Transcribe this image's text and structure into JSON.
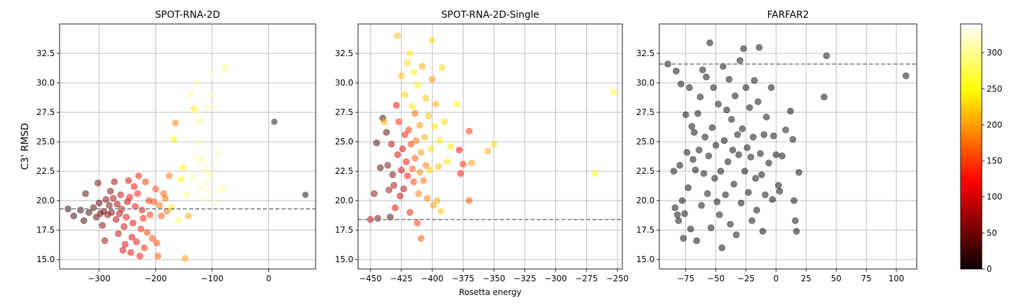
{
  "chart_data": [
    {
      "type": "scatter",
      "title": "SPOT-RNA-2D",
      "xlabel": "",
      "ylabel": "C3' RMSD",
      "xlim": [
        -370,
        83
      ],
      "ylim": [
        14.2,
        35.0
      ],
      "xticks": [
        -300,
        -200,
        -100,
        0
      ],
      "xtick_labels": [
        "−300",
        "−200",
        "−100",
        "0"
      ],
      "yticks": [
        15.0,
        17.5,
        20.0,
        22.5,
        25.0,
        27.5,
        30.0,
        32.5
      ],
      "ytick_labels": [
        "15.0",
        "17.5",
        "20.0",
        "22.5",
        "25.0",
        "27.5",
        "30.0",
        "32.5"
      ],
      "grid": true,
      "reference_line_y": 19.3,
      "points": [
        [
          -355,
          19.3
        ],
        [
          -345,
          18.7
        ],
        [
          -333,
          19.2
        ],
        [
          -327,
          18.3
        ],
        [
          -324,
          20.6
        ],
        [
          -318,
          19.0
        ],
        [
          -310,
          19.4
        ],
        [
          -305,
          18.6
        ],
        [
          -302,
          21.5
        ],
        [
          -300,
          19.8
        ],
        [
          -298,
          18.9
        ],
        [
          -294,
          17.9
        ],
        [
          -292,
          19.1
        ],
        [
          -290,
          16.6
        ],
        [
          -288,
          20.1
        ],
        [
          -285,
          18.8
        ],
        [
          -282,
          19.6
        ],
        [
          -280,
          20.8
        ],
        [
          -278,
          19.0
        ],
        [
          -275,
          20.2
        ],
        [
          -273,
          21.6
        ],
        [
          -270,
          18.4
        ],
        [
          -268,
          19.7
        ],
        [
          -266,
          17.2
        ],
        [
          -264,
          18.9
        ],
        [
          -262,
          20.5
        ],
        [
          -260,
          19.3
        ],
        [
          -258,
          15.8
        ],
        [
          -256,
          17.8
        ],
        [
          -254,
          16.3
        ],
        [
          -252,
          18.6
        ],
        [
          -250,
          19.9
        ],
        [
          -248,
          21.7
        ],
        [
          -246,
          20.3
        ],
        [
          -244,
          15.6
        ],
        [
          -242,
          16.9
        ],
        [
          -240,
          18.1
        ],
        [
          -238,
          21.2
        ],
        [
          -236,
          19.5
        ],
        [
          -234,
          16.5
        ],
        [
          -232,
          20.6
        ],
        [
          -230,
          22.1
        ],
        [
          -228,
          15.3
        ],
        [
          -226,
          17.6
        ],
        [
          -224,
          19.2
        ],
        [
          -222,
          18.5
        ],
        [
          -220,
          16.0
        ],
        [
          -218,
          21.6
        ],
        [
          -215,
          17.3
        ],
        [
          -212,
          20.0
        ],
        [
          -210,
          18.8
        ],
        [
          -206,
          16.8
        ],
        [
          -203,
          19.9
        ],
        [
          -200,
          21.0
        ],
        [
          -198,
          16.4
        ],
        [
          -196,
          15.3
        ],
        [
          -193,
          19.6
        ],
        [
          -190,
          18.7
        ],
        [
          -186,
          20.6
        ],
        [
          -183,
          20.2
        ],
        [
          -180,
          19.1
        ],
        [
          -176,
          22.1
        ],
        [
          -172,
          19.4
        ],
        [
          -168,
          25.2
        ],
        [
          -165,
          26.6
        ],
        [
          -160,
          18.3
        ],
        [
          -155,
          21.8
        ],
        [
          -152,
          22.8
        ],
        [
          -148,
          15.1
        ],
        [
          -145,
          20.5
        ],
        [
          -142,
          18.7
        ],
        [
          -138,
          29.0
        ],
        [
          -135,
          22.0
        ],
        [
          -132,
          27.8
        ],
        [
          -130,
          27.5
        ],
        [
          -128,
          23.7
        ],
        [
          -126,
          30.0
        ],
        [
          -124,
          25.0
        ],
        [
          -122,
          26.8
        ],
        [
          -120,
          21.1
        ],
        [
          -118,
          23.4
        ],
        [
          -115,
          20.2
        ],
        [
          -112,
          22.6
        ],
        [
          -110,
          21.5
        ],
        [
          -108,
          27.9
        ],
        [
          -106,
          20.8
        ],
        [
          -104,
          22.2
        ],
        [
          -102,
          29.0
        ],
        [
          -100,
          30.7
        ],
        [
          -98,
          27.9
        ],
        [
          -96,
          19.8
        ],
        [
          -94,
          22.9
        ],
        [
          -90,
          24.1
        ],
        [
          -88,
          19.6
        ],
        [
          -82,
          21.0
        ],
        [
          -78,
          31.3
        ],
        [
          10,
          26.7
        ],
        [
          65,
          20.5
        ]
      ],
      "point_colors": [
        15,
        20,
        18,
        22,
        30,
        25,
        35,
        40,
        45,
        30,
        50,
        60,
        45,
        70,
        55,
        65,
        48,
        52,
        60,
        75,
        70,
        80,
        72,
        85,
        78,
        90,
        95,
        100,
        88,
        105,
        110,
        92,
        98,
        115,
        120,
        102,
        108,
        125,
        112,
        118,
        130,
        135,
        128,
        140,
        122,
        132,
        138,
        145,
        150,
        142,
        148,
        155,
        160,
        152,
        158,
        165,
        170,
        162,
        168,
        175,
        172,
        178,
        240,
        245,
        185,
        290,
        250,
        255,
        200,
        300,
        205,
        305,
        310,
        240,
        315,
        320,
        308,
        312,
        300,
        318,
        305,
        322,
        310,
        315,
        320,
        325,
        312,
        318,
        328,
        322,
        325,
        330,
        320,
        335,
        300,
        290
      ],
      "colorbar_ticks": [
        0,
        50,
        100,
        150,
        200,
        250,
        300
      ]
    },
    {
      "type": "scatter",
      "title": "SPOT-RNA-2D-Single",
      "xlabel": "Rosetta energy",
      "ylabel": "",
      "xlim": [
        -460,
        -246
      ],
      "ylim": [
        14.2,
        35.0
      ],
      "xticks": [
        -450,
        -425,
        -400,
        -375,
        -350,
        -325,
        -300,
        -275,
        -250
      ],
      "xtick_labels": [
        "−450",
        "−425",
        "−400",
        "−375",
        "−350",
        "−325",
        "−300",
        "−275",
        "−250"
      ],
      "yticks": [
        15.0,
        17.5,
        20.0,
        22.5,
        25.0,
        27.5,
        30.0,
        32.5
      ],
      "ytick_labels": [
        "15.0",
        "17.5",
        "20.0",
        "22.5",
        "25.0",
        "27.5",
        "30.0",
        "32.5"
      ],
      "grid": true,
      "reference_line_y": 18.4,
      "points": [
        [
          -450,
          18.4
        ],
        [
          -447,
          20.6
        ],
        [
          -445,
          24.9
        ],
        [
          -444,
          18.5
        ],
        [
          -442,
          22.8
        ],
        [
          -440,
          27.0
        ],
        [
          -439,
          26.7
        ],
        [
          -437,
          25.8
        ],
        [
          -436,
          23.0
        ],
        [
          -435,
          20.9
        ],
        [
          -434,
          18.6
        ],
        [
          -433,
          24.8
        ],
        [
          -432,
          22.2
        ],
        [
          -431,
          21.3
        ],
        [
          -430,
          19.4
        ],
        [
          -429,
          28.1
        ],
        [
          -428,
          23.9
        ],
        [
          -428,
          34.0
        ],
        [
          -427,
          26.7
        ],
        [
          -426,
          20.4
        ],
        [
          -425,
          22.6
        ],
        [
          -425,
          30.6
        ],
        [
          -424,
          24.4
        ],
        [
          -423,
          21.0
        ],
        [
          -422,
          25.6
        ],
        [
          -422,
          29.0
        ],
        [
          -421,
          23.3
        ],
        [
          -420,
          22.1
        ],
        [
          -420,
          31.7
        ],
        [
          -419,
          26.0
        ],
        [
          -418,
          19.0
        ],
        [
          -418,
          32.5
        ],
        [
          -417,
          24.8
        ],
        [
          -416,
          22.7
        ],
        [
          -416,
          28.0
        ],
        [
          -415,
          21.6
        ],
        [
          -415,
          30.9
        ],
        [
          -414,
          23.6
        ],
        [
          -414,
          27.4
        ],
        [
          -413,
          25.1
        ],
        [
          -412,
          18.1
        ],
        [
          -412,
          29.8
        ],
        [
          -411,
          20.6
        ],
        [
          -410,
          22.4
        ],
        [
          -410,
          26.4
        ],
        [
          -409,
          16.8
        ],
        [
          -409,
          24.1
        ],
        [
          -408,
          31.4
        ],
        [
          -407,
          21.7
        ],
        [
          -406,
          25.4
        ],
        [
          -405,
          23.0
        ],
        [
          -405,
          28.7
        ],
        [
          -404,
          20.2
        ],
        [
          -403,
          27.2
        ],
        [
          -402,
          22.6
        ],
        [
          -401,
          24.4
        ],
        [
          -400,
          30.3
        ],
        [
          -400,
          33.6
        ],
        [
          -399,
          19.6
        ],
        [
          -398,
          26.3
        ],
        [
          -397,
          28.2
        ],
        [
          -396,
          20.0
        ],
        [
          -395,
          22.9
        ],
        [
          -394,
          25.1
        ],
        [
          -393,
          19.1
        ],
        [
          -392,
          31.3
        ],
        [
          -390,
          26.7
        ],
        [
          -388,
          23.3
        ],
        [
          -385,
          24.6
        ],
        [
          -380,
          28.2
        ],
        [
          -378,
          24.3
        ],
        [
          -377,
          22.3
        ],
        [
          -375,
          23.1
        ],
        [
          -370,
          25.9
        ],
        [
          -370,
          20.0
        ],
        [
          -368,
          23.2
        ],
        [
          -355,
          24.2
        ],
        [
          -350,
          24.8
        ],
        [
          -268,
          22.3
        ],
        [
          -253,
          29.2
        ]
      ],
      "point_colors": [
        90,
        60,
        30,
        45,
        40,
        20,
        210,
        35,
        50,
        65,
        25,
        80,
        55,
        70,
        110,
        120,
        100,
        215,
        140,
        85,
        95,
        220,
        105,
        75,
        130,
        225,
        115,
        125,
        230,
        145,
        135,
        235,
        150,
        160,
        240,
        155,
        245,
        165,
        170,
        175,
        150,
        250,
        185,
        190,
        195,
        160,
        200,
        205,
        175,
        210,
        180,
        215,
        185,
        220,
        225,
        230,
        195,
        232,
        200,
        235,
        205,
        210,
        215,
        240,
        220,
        225,
        230,
        235,
        240,
        245,
        120,
        130,
        140,
        150,
        160,
        200,
        210,
        230,
        250,
        270
      ],
      "colorbar_ticks": [
        0,
        50,
        100,
        150,
        200,
        250,
        300
      ]
    },
    {
      "type": "scatter",
      "title": "FARFAR2",
      "xlabel": "",
      "ylabel": "",
      "xlim": [
        -97,
        117
      ],
      "ylim": [
        14.2,
        35.0
      ],
      "xticks": [
        -75,
        -50,
        -25,
        0,
        25,
        50,
        75,
        100
      ],
      "xtick_labels": [
        "−75",
        "−50",
        "−25",
        "0",
        "25",
        "50",
        "75",
        "100"
      ],
      "yticks": [
        15.0,
        17.5,
        20.0,
        22.5,
        25.0,
        27.5,
        30.0,
        32.5
      ],
      "ytick_labels": [
        "15.0",
        "17.5",
        "20.0",
        "22.5",
        "25.0",
        "27.5",
        "30.0",
        "32.5"
      ],
      "grid": true,
      "reference_line_y": 31.6,
      "points": [
        [
          -90,
          31.6
        ],
        [
          -85,
          22.5
        ],
        [
          -84,
          19.4
        ],
        [
          -83,
          31.0
        ],
        [
          -82,
          18.8
        ],
        [
          -81,
          18.3
        ],
        [
          -80,
          23.0
        ],
        [
          -79,
          29.9
        ],
        [
          -78,
          20.0
        ],
        [
          -77,
          16.8
        ],
        [
          -76,
          18.9
        ],
        [
          -75,
          27.3
        ],
        [
          -74,
          24.1
        ],
        [
          -73,
          21.1
        ],
        [
          -72,
          29.6
        ],
        [
          -71,
          17.6
        ],
        [
          -70,
          26.3
        ],
        [
          -69,
          23.5
        ],
        [
          -68,
          25.8
        ],
        [
          -67,
          22.6
        ],
        [
          -66,
          16.6
        ],
        [
          -65,
          27.4
        ],
        [
          -64,
          24.3
        ],
        [
          -63,
          28.8
        ],
        [
          -62,
          19.6
        ],
        [
          -61,
          31.1
        ],
        [
          -60,
          22.3
        ],
        [
          -59,
          25.4
        ],
        [
          -58,
          30.5
        ],
        [
          -57,
          20.6
        ],
        [
          -56,
          23.8
        ],
        [
          -55,
          33.4
        ],
        [
          -54,
          17.7
        ],
        [
          -53,
          26.2
        ],
        [
          -52,
          29.6
        ],
        [
          -51,
          21.9
        ],
        [
          -50,
          24.7
        ],
        [
          -49,
          19.9
        ],
        [
          -48,
          28.2
        ],
        [
          -47,
          18.8
        ],
        [
          -46,
          22.5
        ],
        [
          -45,
          16.0
        ],
        [
          -44,
          31.4
        ],
        [
          -43,
          25.1
        ],
        [
          -42,
          20.5
        ],
        [
          -41,
          27.7
        ],
        [
          -40,
          23.3
        ],
        [
          -39,
          30.3
        ],
        [
          -38,
          18.0
        ],
        [
          -37,
          26.9
        ],
        [
          -36,
          24.3
        ],
        [
          -35,
          21.4
        ],
        [
          -34,
          28.9
        ],
        [
          -33,
          17.1
        ],
        [
          -32,
          25.6
        ],
        [
          -31,
          23.9
        ],
        [
          -30,
          31.9
        ],
        [
          -29,
          19.8
        ],
        [
          -28,
          26.1
        ],
        [
          -27,
          32.9
        ],
        [
          -26,
          22.5
        ],
        [
          -25,
          29.6
        ],
        [
          -24,
          24.5
        ],
        [
          -23,
          20.7
        ],
        [
          -22,
          27.9
        ],
        [
          -21,
          23.7
        ],
        [
          -20,
          18.3
        ],
        [
          -19,
          25.4
        ],
        [
          -18,
          30.2
        ],
        [
          -17,
          21.9
        ],
        [
          -16,
          19.2
        ],
        [
          -15,
          28.4
        ],
        [
          -14,
          33.0
        ],
        [
          -13,
          24.0
        ],
        [
          -12,
          22.2
        ],
        [
          -11,
          17.4
        ],
        [
          -10,
          25.6
        ],
        [
          -9,
          20.5
        ],
        [
          -8,
          27.1
        ],
        [
          -6,
          23.2
        ],
        [
          -4,
          29.6
        ],
        [
          -3,
          20.1
        ],
        [
          -2,
          25.5
        ],
        [
          0,
          23.9
        ],
        [
          2,
          21.3
        ],
        [
          3,
          20.8
        ],
        [
          5,
          23.8
        ],
        [
          8,
          26.0
        ],
        [
          12,
          27.6
        ],
        [
          14,
          25.2
        ],
        [
          15,
          20.0
        ],
        [
          16,
          18.3
        ],
        [
          17,
          17.4
        ],
        [
          19,
          22.4
        ],
        [
          40,
          28.8
        ],
        [
          42,
          32.3
        ],
        [
          108,
          30.6
        ]
      ],
      "point_colors": [],
      "colorbar_ticks": [
        0,
        50,
        100,
        150,
        200,
        250,
        300
      ]
    }
  ],
  "colorbar": {
    "min": 0,
    "max": 340,
    "ticks": [
      0,
      50,
      100,
      150,
      200,
      250,
      300
    ],
    "tick_labels": [
      "0",
      "50",
      "100",
      "150",
      "200",
      "250",
      "300"
    ],
    "colormap": "hot"
  }
}
